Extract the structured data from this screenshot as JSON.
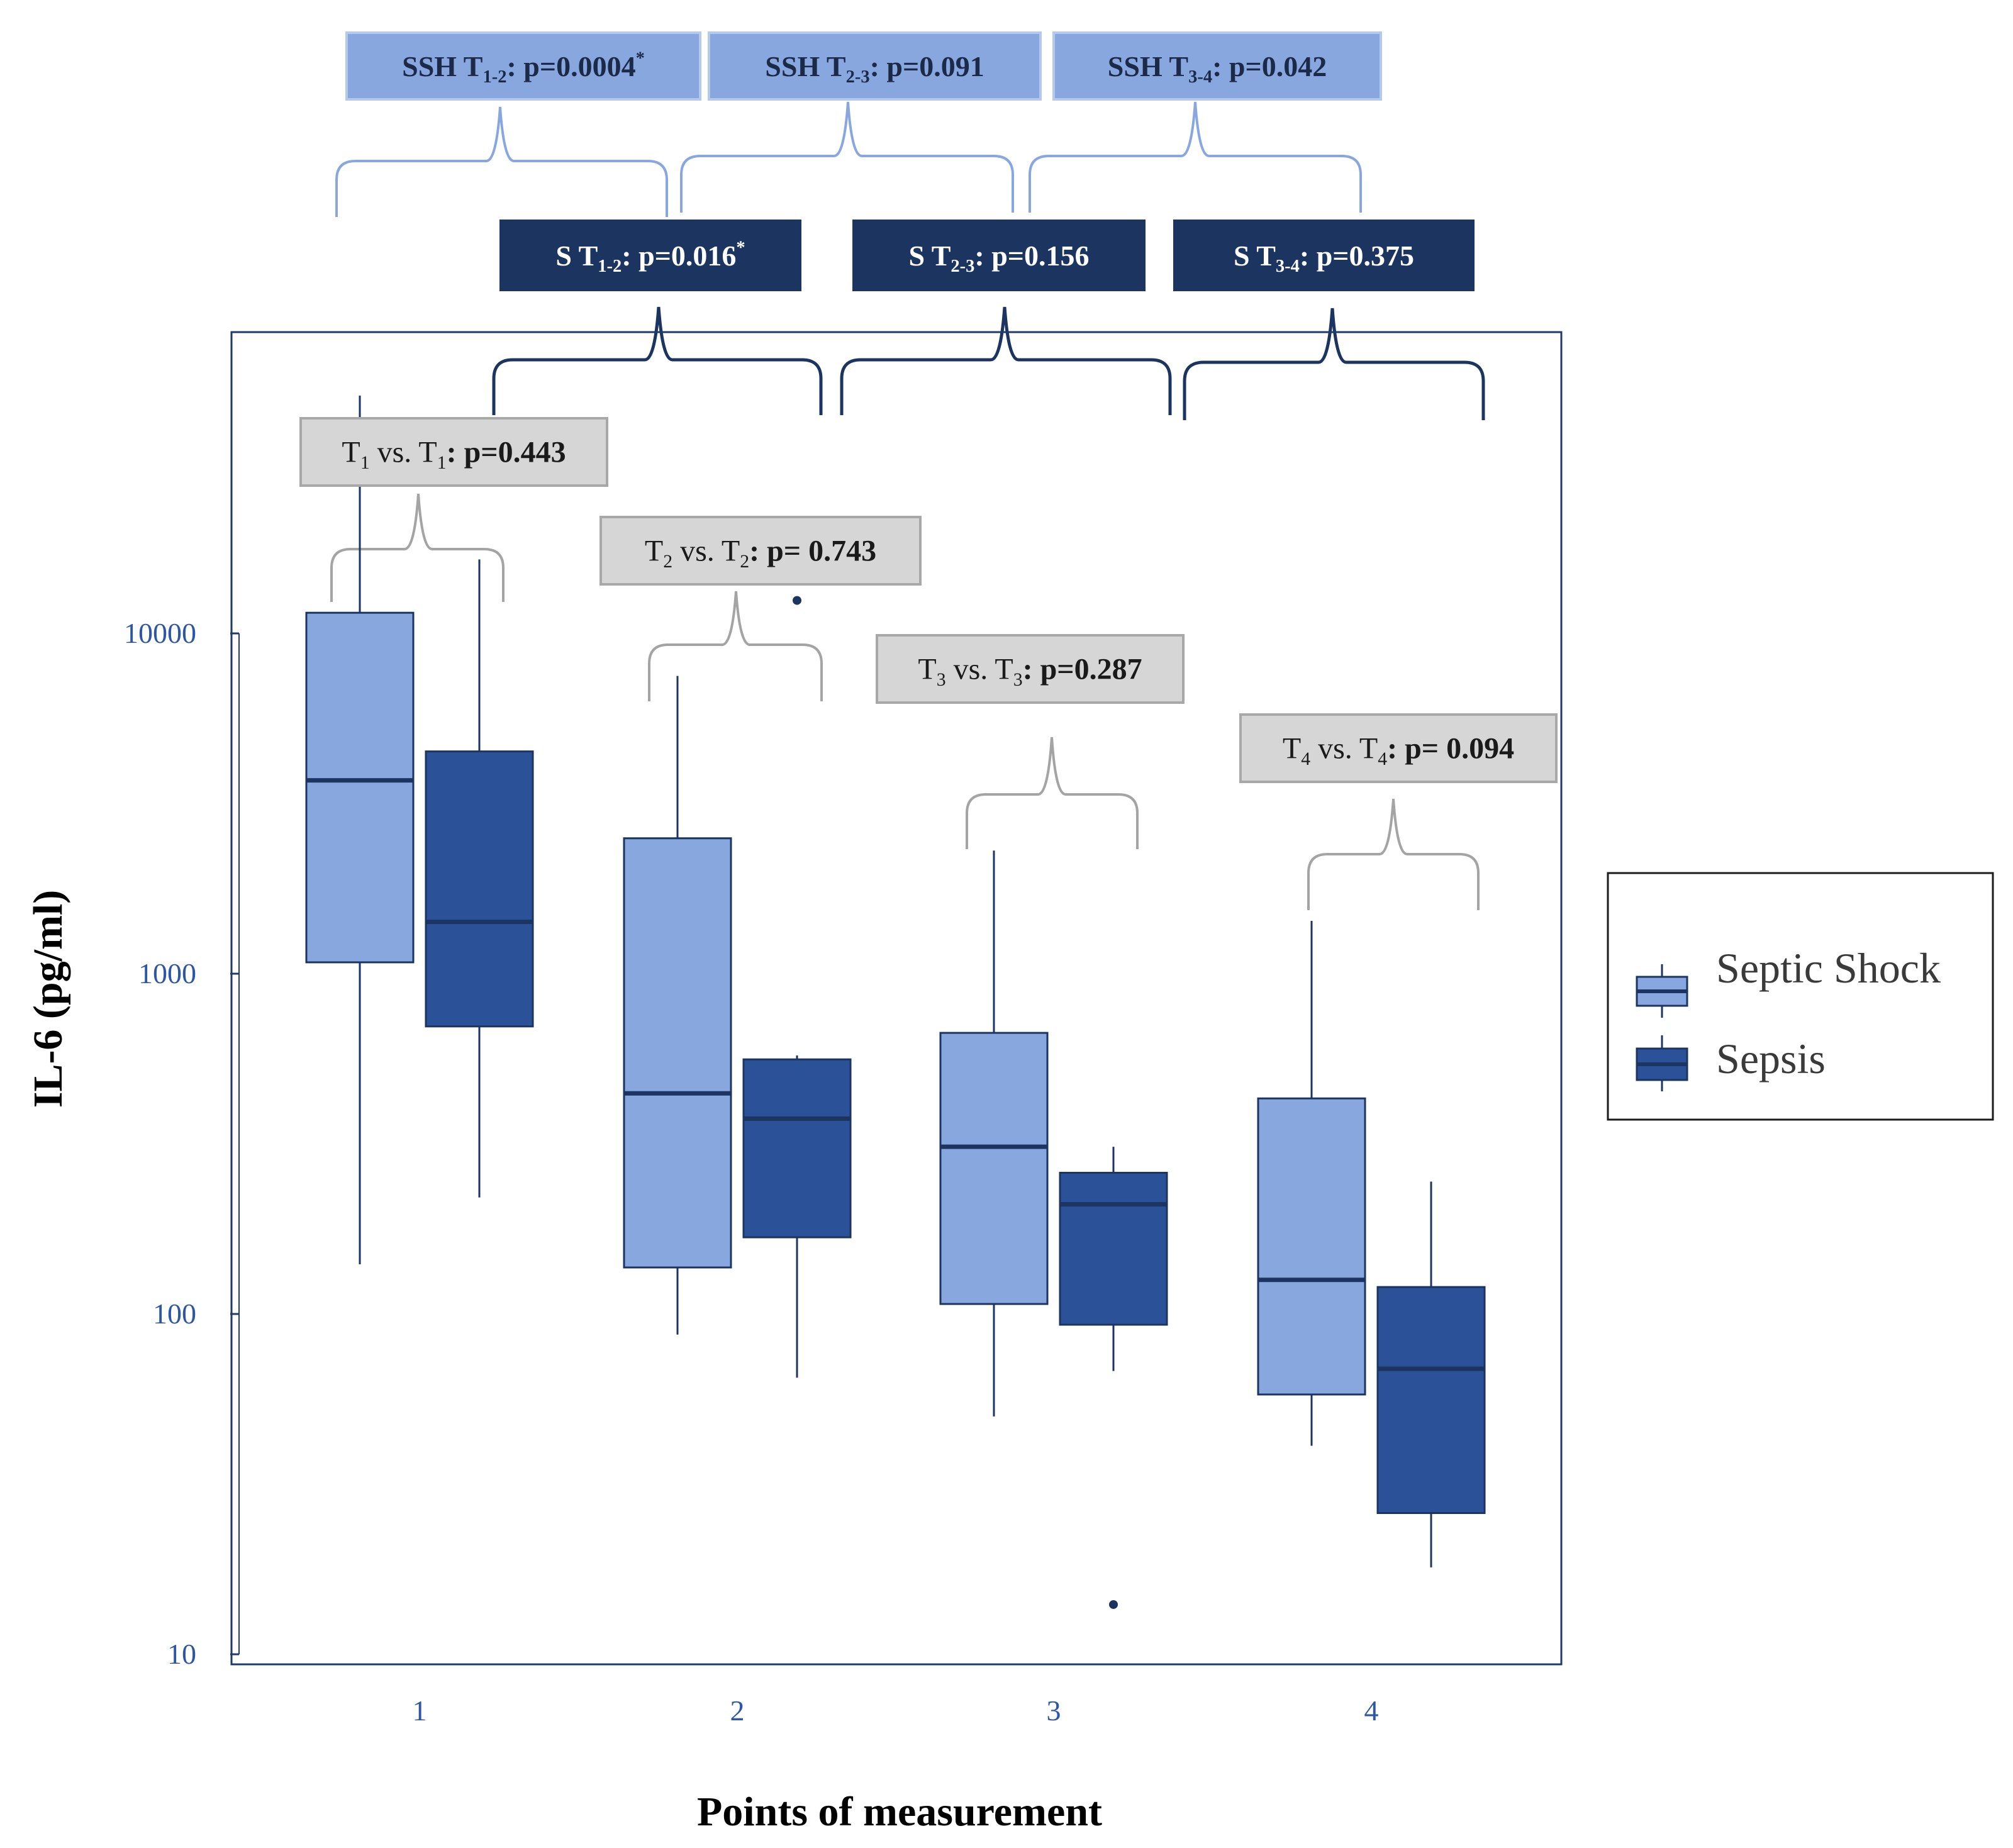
{
  "chart_data": {
    "type": "boxplot",
    "title": "",
    "xlabel": "Points of measurement",
    "ylabel": "IL-6 (pg/ml)",
    "y_scale": "log",
    "ylim": [
      10,
      60000
    ],
    "y_ticks": [
      10,
      100,
      1000,
      10000
    ],
    "y_tick_labels": [
      "10",
      "100",
      "1000",
      "10000"
    ],
    "categories": [
      "1",
      "2",
      "3",
      "4"
    ],
    "legend": {
      "position": "right",
      "entries": [
        "Septic Shock",
        "Sepsis"
      ]
    },
    "series": [
      {
        "name": "Septic Shock",
        "color": "#88a7df",
        "boxes": [
          {
            "whisker_low": 140,
            "q1": 1080,
            "median": 3700,
            "q3": 11500,
            "whisker_high": 50000
          },
          {
            "whisker_low": 87,
            "q1": 137,
            "median": 445,
            "q3": 2500,
            "whisker_high": 7500
          },
          {
            "whisker_low": 50,
            "q1": 107,
            "median": 310,
            "q3": 670,
            "whisker_high": 2300
          },
          {
            "whisker_low": 41,
            "q1": 58,
            "median": 126,
            "q3": 430,
            "whisker_high": 1430
          }
        ],
        "outliers": [
          [],
          [],
          [],
          []
        ]
      },
      {
        "name": "Sepsis",
        "color": "#2b5298",
        "boxes": [
          {
            "whisker_low": 220,
            "q1": 700,
            "median": 1420,
            "q3": 4500,
            "whisker_high": 16500
          },
          {
            "whisker_low": 65,
            "q1": 168,
            "median": 375,
            "q3": 560,
            "whisker_high": 575
          },
          {
            "whisker_low": 68,
            "q1": 93,
            "median": 210,
            "q3": 260,
            "whisker_high": 310
          },
          {
            "whisker_low": 18,
            "q1": 26,
            "median": 69,
            "q3": 120,
            "whisker_high": 245
          }
        ],
        "outliers": [
          [],
          [
            12500
          ],
          [
            14
          ],
          []
        ]
      }
    ],
    "annotations": {
      "septic_shock_between": [
        {
          "prefix": "SSH T",
          "sub": "1-2",
          "value": ": p=0.0004",
          "star": "*"
        },
        {
          "prefix": "SSH T",
          "sub": "2-3",
          "value": ": p=0.091",
          "star": ""
        },
        {
          "prefix": "SSH T",
          "sub": "3-4",
          "value": ": p=0.042",
          "star": ""
        }
      ],
      "sepsis_between": [
        {
          "prefix": "S T",
          "sub": "1-2",
          "value": ": p=0.016",
          "star": "*"
        },
        {
          "prefix": "S  T",
          "sub": "2-3",
          "value": ": p=0.156",
          "star": ""
        },
        {
          "prefix": "S  T",
          "sub": "3-4",
          "value": ": p=0.375",
          "star": ""
        }
      ],
      "group_comparisons": [
        {
          "t": "T",
          "sub": "1",
          "vs": " vs. T",
          "value": ": p=0.443"
        },
        {
          "t": "T",
          "sub": "2",
          "vs": " vs. T",
          "value": ": p= 0.743"
        },
        {
          "t": "T",
          "sub": "3",
          "vs": " vs. T",
          "value": ": p=0.287"
        },
        {
          "t": "T",
          "sub": "4",
          "vs": " vs. T",
          "value": ": p= 0.094"
        }
      ]
    }
  },
  "colors": {
    "septic_shock": "#88a7df",
    "sepsis": "#2b5298",
    "navy": "#1b3560",
    "frame": "#1f3a6b",
    "tick_label": "#2d56a6",
    "gray_box": "#d6d6d6",
    "gray_border": "#a8a8a8",
    "gray_bracket": "#a4a4a4"
  }
}
